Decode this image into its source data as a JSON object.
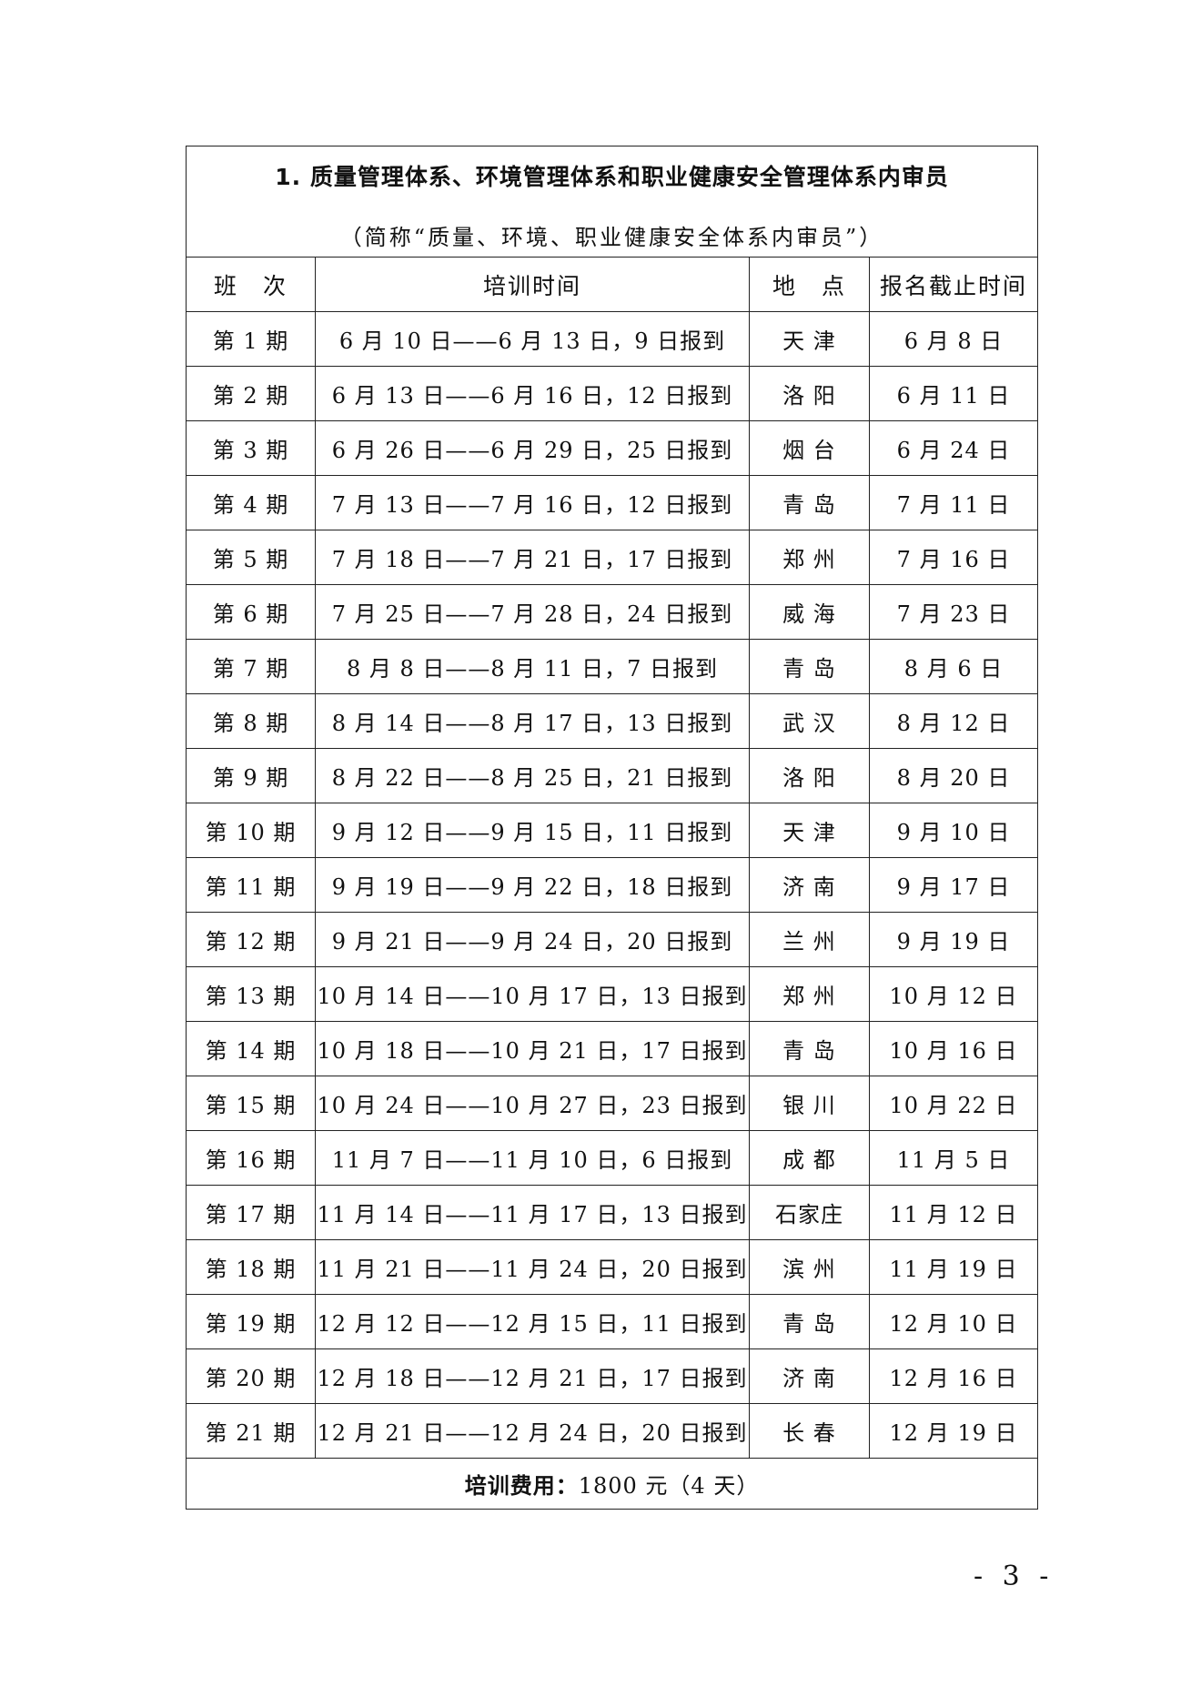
{
  "title": "1. 质量管理体系、环境管理体系和职业健康安全管理体系内审员",
  "subtitle": "（简称“质量、环境、职业健康安全体系内审员”）",
  "columns": [
    "班　次",
    "培训时间",
    "地　点",
    "报名截止时间"
  ],
  "rows": [
    [
      "第 1 期",
      "6 月 10 日——6 月 13 日，9 日报到",
      "天 津",
      "6 月 8 日"
    ],
    [
      "第 2 期",
      "6 月 13 日——6 月 16 日，12 日报到",
      "洛 阳",
      "6 月 11 日"
    ],
    [
      "第 3 期",
      "6 月 26 日——6 月 29 日，25 日报到",
      "烟 台",
      "6 月 24 日"
    ],
    [
      "第 4 期",
      "7 月 13 日——7 月 16 日，12 日报到",
      "青 岛",
      "7 月 11 日"
    ],
    [
      "第 5 期",
      "7 月 18 日——7 月 21 日，17 日报到",
      "郑 州",
      "7 月 16 日"
    ],
    [
      "第 6 期",
      "7 月 25 日——7 月 28 日，24 日报到",
      "威 海",
      "7 月 23 日"
    ],
    [
      "第 7 期",
      "8 月 8 日——8 月 11 日，7 日报到",
      "青 岛",
      "8 月 6 日"
    ],
    [
      "第 8 期",
      "8 月 14 日——8 月 17 日，13 日报到",
      "武 汉",
      "8 月 12 日"
    ],
    [
      "第 9 期",
      "8 月 22 日——8 月 25 日，21 日报到",
      "洛 阳",
      "8 月 20 日"
    ],
    [
      "第 10 期",
      "9 月 12 日——9 月 15 日，11 日报到",
      "天 津",
      "9 月 10 日"
    ],
    [
      "第 11 期",
      "9 月 19 日——9 月 22 日，18 日报到",
      "济 南",
      "9 月 17 日"
    ],
    [
      "第 12 期",
      "9 月 21 日——9 月 24 日，20 日报到",
      "兰 州",
      "9 月 19 日"
    ],
    [
      "第 13 期",
      "10 月 14 日——10 月 17 日，13 日报到",
      "郑 州",
      "10 月 12 日"
    ],
    [
      "第 14 期",
      "10 月 18 日——10 月 21 日，17 日报到",
      "青 岛",
      "10 月 16 日"
    ],
    [
      "第 15 期",
      "10 月 24 日——10 月 27 日，23 日报到",
      "银 川",
      "10 月 22 日"
    ],
    [
      "第 16 期",
      "11 月 7 日——11 月 10 日，6 日报到",
      "成 都",
      "11 月 5 日"
    ],
    [
      "第 17 期",
      "11 月 14 日——11 月 17 日，13 日报到",
      "石家庄",
      "11 月 12 日"
    ],
    [
      "第 18 期",
      "11 月 21 日——11 月 24 日，20 日报到",
      "滨 州",
      "11 月 19 日"
    ],
    [
      "第 19 期",
      "12 月 12 日——12 月 15 日，11 日报到",
      "青 岛",
      "12 月 10 日"
    ],
    [
      "第 20 期",
      "12 月 18 日——12 月 21 日，17 日报到",
      "济 南",
      "12 月 16 日"
    ],
    [
      "第 21 期",
      "12 月 21 日——12 月 24 日，20 日报到",
      "长 春",
      "12 月 19 日"
    ]
  ],
  "footer": {
    "label": "培训费用：",
    "value": "1800 元（4 天）"
  },
  "page_number": "- 3 -"
}
